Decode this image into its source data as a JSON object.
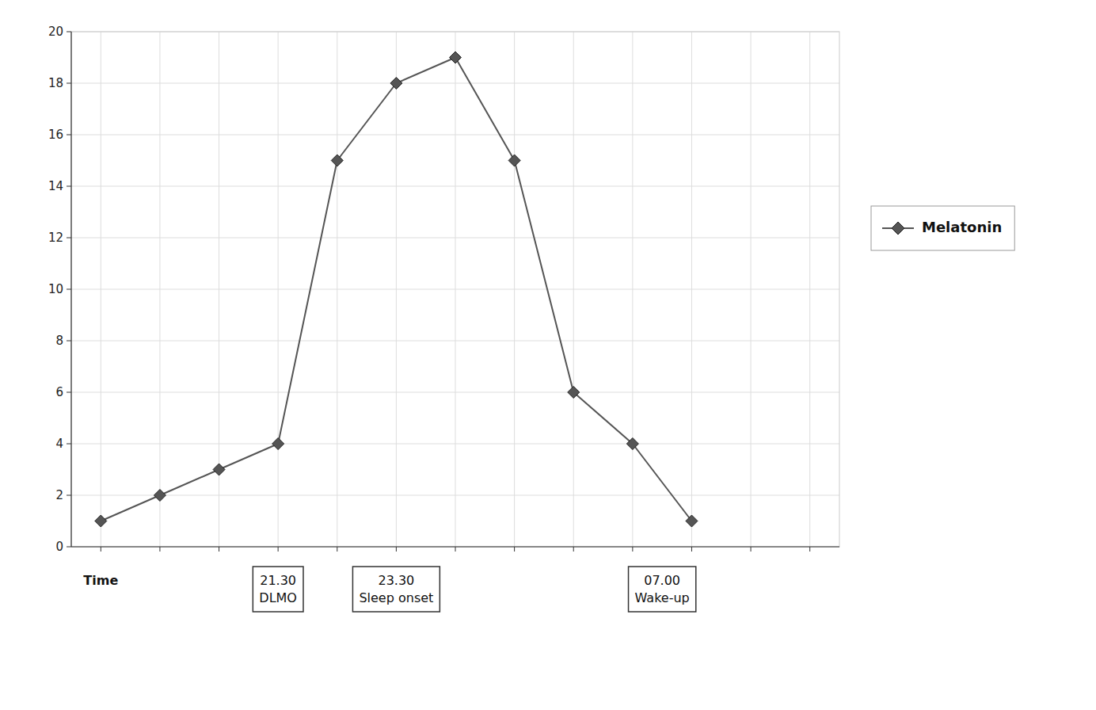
{
  "chart_data": {
    "type": "line",
    "x": [
      0,
      1,
      2,
      3,
      4,
      5,
      6,
      7,
      8,
      9,
      10
    ],
    "series": [
      {
        "name": "Melatonin",
        "color": "#555555",
        "marker": "diamond",
        "values": [
          1,
          2,
          3,
          4,
          15,
          18,
          19,
          15,
          6,
          4,
          1
        ]
      }
    ],
    "xlim": [
      -0.5,
      12.5
    ],
    "xticks": [
      0,
      1,
      2,
      3,
      4,
      5,
      6,
      7,
      8,
      9,
      10,
      11,
      12
    ],
    "ylim": [
      0,
      20
    ],
    "yticks": [
      0,
      2,
      4,
      6,
      8,
      10,
      12,
      14,
      16,
      18,
      20
    ],
    "grid": true,
    "legend": "right",
    "tick_labels": "y",
    "annotations": [
      {
        "text": "Time",
        "x": 0
      },
      {
        "text": "21.30\nDLMO",
        "x": 3
      },
      {
        "text": "23.30\nSleep onset",
        "x": 5
      },
      {
        "text": "07.00\nWake-up",
        "x": 9.5
      }
    ]
  }
}
